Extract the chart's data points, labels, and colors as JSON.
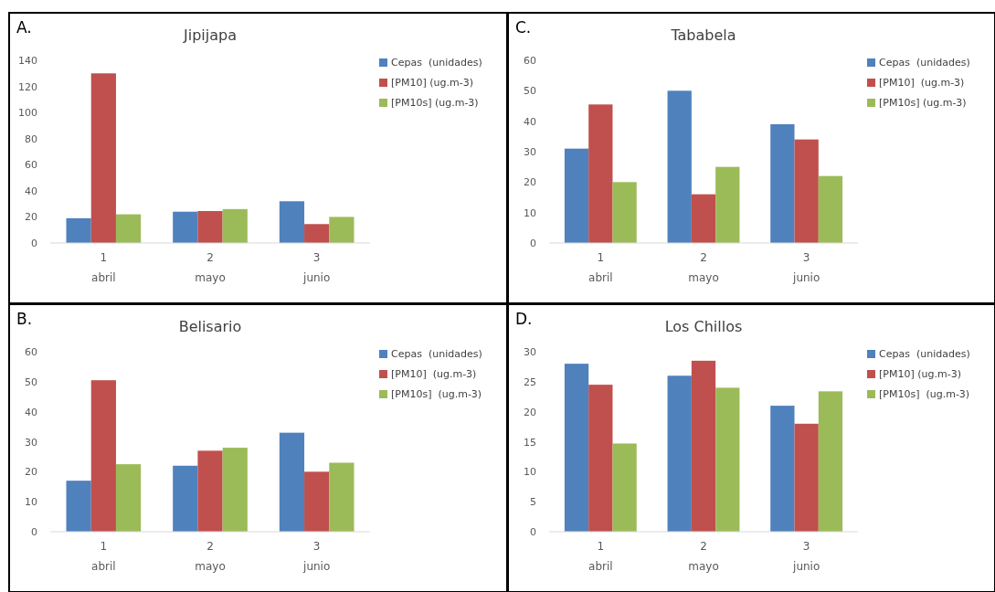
{
  "chart_data": [
    {
      "type": "bar",
      "title": "Jipijapa",
      "annotations": [
        "A."
      ],
      "categories": [
        "1\nabril",
        "2\nmayo",
        "3\njunio"
      ],
      "ylim": [
        0,
        140
      ],
      "yticks": [
        0,
        20,
        40,
        60,
        80,
        100,
        120,
        140
      ],
      "grid": false,
      "legend": "top right",
      "series": [
        {
          "name": "Cepas  (unidades)",
          "color": "#4f81bd",
          "values": [
            19,
            24,
            32
          ]
        },
        {
          "name": "[PM10] (ug.m-3)",
          "color": "#c0504d",
          "values": [
            130,
            24.5,
            14.5
          ]
        },
        {
          "name": "[PM10s] (ug.m-3)",
          "color": "#9bbb59",
          "values": [
            22,
            26,
            20
          ]
        }
      ]
    },
    {
      "type": "bar",
      "title": "Tababela",
      "annotations": [
        "C."
      ],
      "categories": [
        "1\nabril",
        "2\nmayo",
        "3\njunio"
      ],
      "ylim": [
        0,
        60
      ],
      "yticks": [
        0,
        10,
        20,
        30,
        40,
        50,
        60
      ],
      "grid": false,
      "legend": "top right",
      "series": [
        {
          "name": "Cepas  (unidades)",
          "color": "#4f81bd",
          "values": [
            31,
            50,
            39
          ]
        },
        {
          "name": "[PM10]  (ug.m-3)",
          "color": "#c0504d",
          "values": [
            45.5,
            16,
            34
          ]
        },
        {
          "name": "[PM10s] (ug.m-3)",
          "color": "#9bbb59",
          "values": [
            20,
            25,
            22
          ]
        }
      ]
    },
    {
      "type": "bar",
      "title": "Belisario",
      "annotations": [
        "B."
      ],
      "categories": [
        "1\nabril",
        "2\nmayo",
        "3\njunio"
      ],
      "ylim": [
        0,
        60
      ],
      "yticks": [
        0,
        10,
        20,
        30,
        40,
        50,
        60
      ],
      "grid": false,
      "legend": "top right",
      "series": [
        {
          "name": "Cepas  (unidades)",
          "color": "#4f81bd",
          "values": [
            17,
            22,
            33
          ]
        },
        {
          "name": "[PM10]  (ug.m-3)",
          "color": "#c0504d",
          "values": [
            50.5,
            27,
            20
          ]
        },
        {
          "name": "[PM10s]  (ug.m-3)",
          "color": "#9bbb59",
          "values": [
            22.5,
            28,
            23
          ]
        }
      ]
    },
    {
      "type": "bar",
      "title": "Los Chillos",
      "annotations": [
        "D."
      ],
      "categories": [
        "1\nabril",
        "2\nmayo",
        "3\njunio"
      ],
      "ylim": [
        0,
        30
      ],
      "yticks": [
        0,
        5,
        10,
        15,
        20,
        25,
        30
      ],
      "grid": false,
      "legend": "top right",
      "series": [
        {
          "name": "Cepas  (unidades)",
          "color": "#4f81bd",
          "values": [
            28,
            26,
            21
          ]
        },
        {
          "name": "[PM10] (ug.m-3)",
          "color": "#c0504d",
          "values": [
            24.5,
            28.5,
            18
          ]
        },
        {
          "name": "[PM10s]  (ug.m-3)",
          "color": "#9bbb59",
          "values": [
            14.7,
            24,
            23.4
          ]
        }
      ]
    }
  ]
}
